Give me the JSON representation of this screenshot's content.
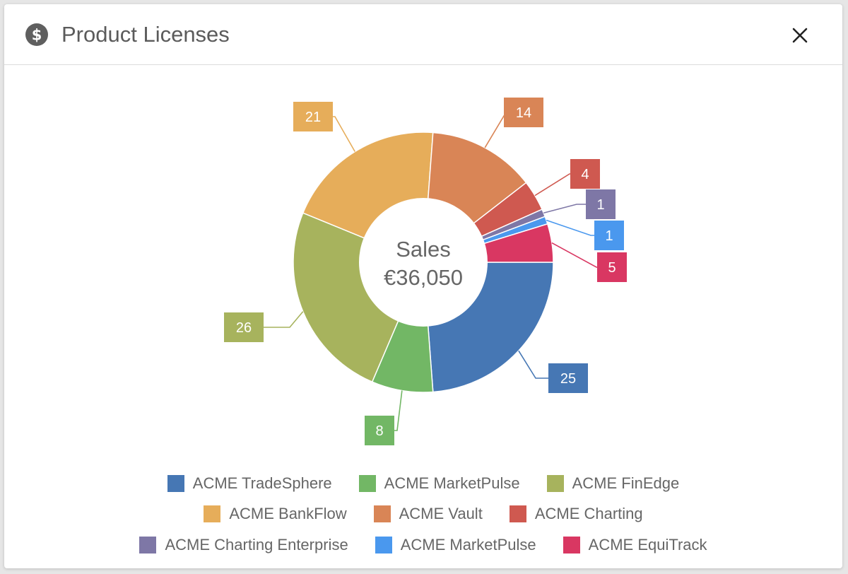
{
  "header": {
    "title": "Product Licenses",
    "icon": "dollar-circle-icon",
    "close_icon": "close-icon"
  },
  "chart_data": {
    "type": "pie",
    "donut": true,
    "center_text": [
      "Sales",
      "€36,050"
    ],
    "series": [
      {
        "name": "ACME TradeSphere",
        "value": 25,
        "color": "#4677b4"
      },
      {
        "name": "ACME MarketPulse",
        "value": 8,
        "color": "#72b765"
      },
      {
        "name": "ACME FinEdge",
        "value": 26,
        "color": "#a7b35d"
      },
      {
        "name": "ACME BankFlow",
        "value": 21,
        "color": "#e6ad5a"
      },
      {
        "name": "ACME Vault",
        "value": 14,
        "color": "#d98556"
      },
      {
        "name": "ACME Charting",
        "value": 4,
        "color": "#cf5950"
      },
      {
        "name": "ACME Charting Enterprise",
        "value": 1,
        "color": "#7e77a6"
      },
      {
        "name": "ACME MarketPulse",
        "value": 1,
        "color": "#4a98ee"
      },
      {
        "name": "ACME EquiTrack",
        "value": 5,
        "color": "#d93762"
      }
    ],
    "legend_placement": "bottom"
  }
}
